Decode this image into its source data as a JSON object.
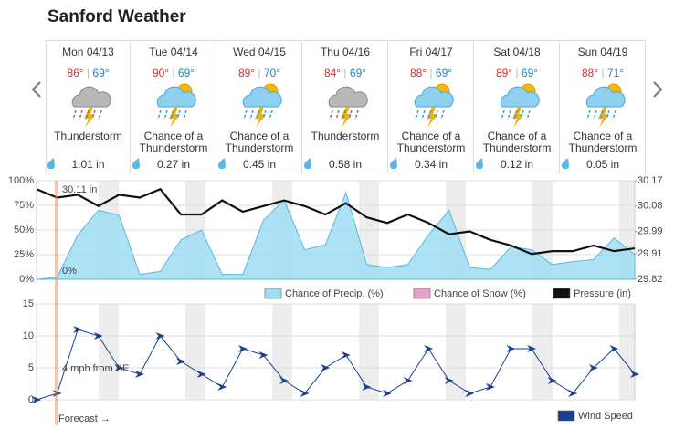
{
  "header": {
    "title": "Sanford Weather"
  },
  "days": [
    {
      "day": "Mon 04/13",
      "high": "86°",
      "low": "69°",
      "condition": "Thunderstorm",
      "precip": "1.01 in"
    },
    {
      "day": "Tue 04/14",
      "high": "90°",
      "low": "69°",
      "condition": "Chance of a Thunderstorm",
      "precip": "0.27 in"
    },
    {
      "day": "Wed 04/15",
      "high": "89°",
      "low": "70°",
      "condition": "Chance of a Thunderstorm",
      "precip": "0.45 in"
    },
    {
      "day": "Thu 04/16",
      "high": "84°",
      "low": "69°",
      "condition": "Thunderstorm",
      "precip": "0.58 in"
    },
    {
      "day": "Fri 04/17",
      "high": "88°",
      "low": "69°",
      "condition": "Chance of a Thunderstorm",
      "precip": "0.34 in"
    },
    {
      "day": "Sat 04/18",
      "high": "89°",
      "low": "69°",
      "condition": "Chance of a Thunderstorm",
      "precip": "0.12 in"
    },
    {
      "day": "Sun 04/19",
      "high": "88°",
      "low": "71°",
      "condition": "Chance of a Thunderstorm",
      "precip": "0.05 in"
    }
  ],
  "chart_data": [
    {
      "type": "line",
      "annotations": [
        "30.11 in",
        "0%"
      ],
      "ylim": [
        0,
        100
      ],
      "yticks": [
        {
          "value": 0,
          "label": "0%"
        },
        {
          "value": 25,
          "label": "25%"
        },
        {
          "value": 50,
          "label": "50%"
        },
        {
          "value": 75,
          "label": "75%"
        },
        {
          "value": 100,
          "label": "100%"
        }
      ],
      "y2lim": [
        29.82,
        30.17
      ],
      "y2ticks": [
        29.82,
        29.91,
        29.99,
        30.08,
        30.17
      ],
      "grid": true,
      "series": [
        {
          "name": "Chance of Precip. (%)",
          "color": "#9fdcf2",
          "style": "area",
          "values": [
            0,
            2,
            45,
            70,
            65,
            5,
            8,
            40,
            50,
            5,
            5,
            60,
            80,
            30,
            35,
            88,
            15,
            12,
            15,
            45,
            70,
            12,
            10,
            33,
            30,
            15,
            18,
            20,
            42,
            25
          ]
        },
        {
          "name": "Chance of Snow (%)",
          "color": "#e6a3c9",
          "style": "area",
          "values": [
            0,
            0,
            0,
            0,
            0,
            0,
            0,
            0,
            0,
            0,
            0,
            0,
            0,
            0,
            0,
            0,
            0,
            0,
            0,
            0,
            0,
            0,
            0,
            0,
            0,
            0,
            0,
            0,
            0,
            0
          ]
        },
        {
          "name": "Pressure (in)",
          "color": "#111111",
          "style": "line",
          "axis": "y2",
          "values": [
            30.14,
            30.11,
            30.12,
            30.08,
            30.12,
            30.11,
            30.14,
            30.05,
            30.05,
            30.1,
            30.06,
            30.08,
            30.1,
            30.08,
            30.05,
            30.09,
            30.04,
            30.02,
            30.05,
            30.02,
            29.98,
            29.99,
            29.96,
            29.94,
            29.91,
            29.92,
            29.92,
            29.94,
            29.92,
            29.93
          ]
        }
      ]
    },
    {
      "type": "line",
      "annotations": [
        "4 mph from SE",
        "Forecast →"
      ],
      "ylim": [
        0,
        15
      ],
      "yticks": [
        0,
        5,
        10,
        15
      ],
      "grid": true,
      "series": [
        {
          "name": "Wind Speed",
          "color": "#1c3f8f",
          "style": "line",
          "values": [
            0,
            1,
            11,
            10,
            5,
            4,
            10,
            6,
            4,
            2,
            8,
            7,
            3,
            1,
            5,
            7,
            2,
            1,
            3,
            8,
            3,
            1,
            2,
            8,
            8,
            3,
            1,
            5,
            8,
            4
          ]
        }
      ]
    }
  ]
}
